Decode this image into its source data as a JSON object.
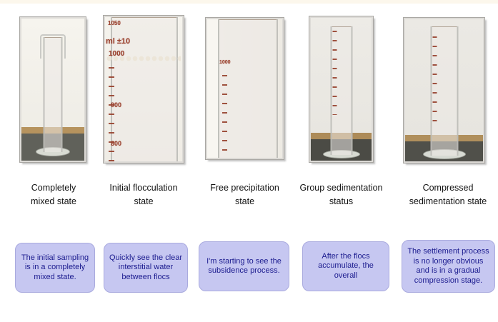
{
  "page": {
    "top_strip_color": "#fcf7ec",
    "background": "#ffffff"
  },
  "colors": {
    "box_background": "#c6c7f1",
    "box_border": "#a9aade",
    "box_text": "#1c1c8f",
    "caption_text": "#111111",
    "cylinder_marking_red": "#9b4330",
    "photo_frame_grey": "#a9a7a3"
  },
  "stages": [
    {
      "label_line1": "Completely",
      "label_line2": "mixed state",
      "description": "The initial sampling is in a completely mixed state.",
      "photo": "graduated-cylinder-fully-mixed-brown-suspension"
    },
    {
      "label_line1": "Initial flocculation",
      "label_line2": "state",
      "description": "Quickly see the clear interstitial water between flocs",
      "photo": "graduated-cylinder-closeup-flocs-forming",
      "markings": [
        "1050",
        "ml ±10",
        "1000",
        "900",
        "800"
      ]
    },
    {
      "label_line1": "Free precipitation",
      "label_line2": "state",
      "description": "I'm starting to see the subsidence process.",
      "photo": "graduated-cylinder-closeup-settling-interface",
      "markings": [
        "1000"
      ]
    },
    {
      "label_line1": "Group sedimentation",
      "label_line2": "status",
      "description": "After the flocs accumulate, the overall",
      "photo": "graduated-cylinder-clear-supernatant-dark-sediment"
    },
    {
      "label_line1": "Compressed",
      "label_line2": "sedimentation state",
      "description": "The settlement process is no longer obvious and is in a gradual compression stage.",
      "photo": "graduated-cylinder-compressed-sediment-layer"
    }
  ]
}
